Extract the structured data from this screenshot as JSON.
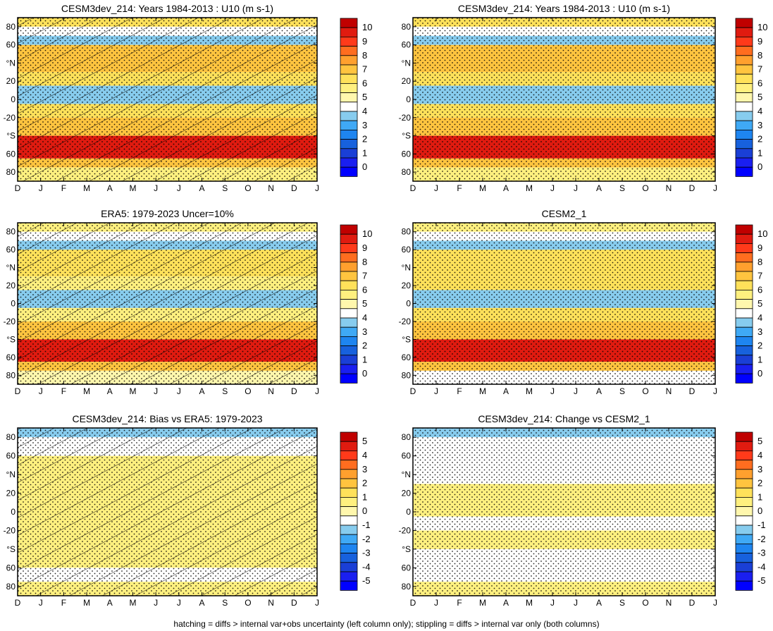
{
  "footnote": "hatching = diffs > internal var+obs uncertainty (left column only); stippling = diffs > internal var only (both columns)",
  "months": [
    "D",
    "J",
    "F",
    "M",
    "A",
    "M",
    "J",
    "J",
    "A",
    "S",
    "O",
    "N",
    "D",
    "J"
  ],
  "lat_ticks": [
    "80",
    "60",
    "°N",
    "20",
    "0",
    "-20",
    "°S",
    "60",
    "80"
  ],
  "colorbars": {
    "abs": {
      "labels": [
        "10",
        "9",
        "8",
        "7",
        "6",
        "5",
        "4",
        "3",
        "2",
        "1",
        "0"
      ],
      "colors": [
        "#c00000",
        "#e01b10",
        "#ff3a1a",
        "#ff6d1f",
        "#ffa02e",
        "#ffc43f",
        "#ffe15a",
        "#fff07f",
        "#fff7ad",
        "#ffffff",
        "#87ccee",
        "#3fa9f5",
        "#1e85f0",
        "#1761dd",
        "#1a3fd6",
        "#1a1ff0",
        "#0000ff"
      ]
    },
    "diff": {
      "labels": [
        "5",
        "4",
        "3",
        "2",
        "1",
        "0",
        "-1",
        "-2",
        "-3",
        "-4",
        "-5"
      ],
      "colors": [
        "#c00000",
        "#e01b10",
        "#ff3a1a",
        "#ff6d1f",
        "#ffa02e",
        "#ffc43f",
        "#ffe15a",
        "#fff07f",
        "#fff7ad",
        "#ffffff",
        "#87ccee",
        "#3fa9f5",
        "#1e85f0",
        "#1761dd",
        "#1a3fd6",
        "#1a1ff0",
        "#0000ff"
      ]
    }
  },
  "chart_data": [
    {
      "type": "heatmap",
      "title": "CESM3dev_214: Years 1984-2013 : U10 (m s-1)",
      "x": [
        "D",
        "J",
        "F",
        "M",
        "A",
        "M",
        "J",
        "J",
        "A",
        "S",
        "O",
        "N",
        "D",
        "J"
      ],
      "y_ticks": [
        "80",
        "60",
        "°N",
        "20",
        "0",
        "-20",
        "°S",
        "60",
        "80"
      ],
      "colorbar": "abs",
      "hatching": true,
      "stippling": true,
      "bands": [
        {
          "lat_range": [
            80,
            90
          ],
          "u10": 6.5
        },
        {
          "lat_range": [
            70,
            80
          ],
          "u10": 5.0
        },
        {
          "lat_range": [
            60,
            70
          ],
          "u10": 4.8
        },
        {
          "lat_range": [
            30,
            60
          ],
          "u10": 7.0
        },
        {
          "lat_range": [
            15,
            30
          ],
          "u10": 6.5
        },
        {
          "lat_range": [
            -5,
            15
          ],
          "u10": 4.7
        },
        {
          "lat_range": [
            -20,
            -5
          ],
          "u10": 6.5
        },
        {
          "lat_range": [
            -40,
            -20
          ],
          "u10": 7.5
        },
        {
          "lat_range": [
            -65,
            -40
          ],
          "u10": 9.6
        },
        {
          "lat_range": [
            -75,
            -65
          ],
          "u10": 7.5
        },
        {
          "lat_range": [
            -90,
            -75
          ],
          "u10": 6.0
        }
      ]
    },
    {
      "type": "heatmap",
      "title": "CESM3dev_214: Years 1984-2013 : U10 (m s-1)",
      "x": [
        "D",
        "J",
        "F",
        "M",
        "A",
        "M",
        "J",
        "J",
        "A",
        "S",
        "O",
        "N",
        "D",
        "J"
      ],
      "y_ticks": [
        "80",
        "60",
        "°N",
        "20",
        "0",
        "-20",
        "°S",
        "60",
        "80"
      ],
      "colorbar": "abs",
      "hatching": false,
      "stippling": true,
      "bands": [
        {
          "lat_range": [
            80,
            90
          ],
          "u10": 6.5
        },
        {
          "lat_range": [
            70,
            80
          ],
          "u10": 5.0
        },
        {
          "lat_range": [
            60,
            70
          ],
          "u10": 4.8
        },
        {
          "lat_range": [
            30,
            60
          ],
          "u10": 7.0
        },
        {
          "lat_range": [
            15,
            30
          ],
          "u10": 6.5
        },
        {
          "lat_range": [
            -5,
            15
          ],
          "u10": 4.7
        },
        {
          "lat_range": [
            -20,
            -5
          ],
          "u10": 6.5
        },
        {
          "lat_range": [
            -40,
            -20
          ],
          "u10": 7.5
        },
        {
          "lat_range": [
            -65,
            -40
          ],
          "u10": 9.6
        },
        {
          "lat_range": [
            -75,
            -65
          ],
          "u10": 7.5
        },
        {
          "lat_range": [
            -90,
            -75
          ],
          "u10": 6.0
        }
      ]
    },
    {
      "type": "heatmap",
      "title": "ERA5: 1979-2023 Uncer=10%",
      "x": [
        "D",
        "J",
        "F",
        "M",
        "A",
        "M",
        "J",
        "J",
        "A",
        "S",
        "O",
        "N",
        "D",
        "J"
      ],
      "y_ticks": [
        "80",
        "60",
        "°N",
        "20",
        "0",
        "-20",
        "°S",
        "60",
        "80"
      ],
      "colorbar": "abs",
      "hatching": true,
      "stippling": true,
      "bands": [
        {
          "lat_range": [
            80,
            90
          ],
          "u10": 6.0
        },
        {
          "lat_range": [
            70,
            80
          ],
          "u10": 5.0
        },
        {
          "lat_range": [
            60,
            70
          ],
          "u10": 4.6
        },
        {
          "lat_range": [
            30,
            60
          ],
          "u10": 6.5
        },
        {
          "lat_range": [
            15,
            30
          ],
          "u10": 6.0
        },
        {
          "lat_range": [
            -5,
            15
          ],
          "u10": 4.6
        },
        {
          "lat_range": [
            -20,
            -5
          ],
          "u10": 6.0
        },
        {
          "lat_range": [
            -40,
            -20
          ],
          "u10": 7.2
        },
        {
          "lat_range": [
            -65,
            -40
          ],
          "u10": 9.5
        },
        {
          "lat_range": [
            -75,
            -65
          ],
          "u10": 7.0
        },
        {
          "lat_range": [
            -90,
            -75
          ],
          "u10": 5.5
        }
      ]
    },
    {
      "type": "heatmap",
      "title": "CESM2_1",
      "x": [
        "D",
        "J",
        "F",
        "M",
        "A",
        "M",
        "J",
        "J",
        "A",
        "S",
        "O",
        "N",
        "D",
        "J"
      ],
      "y_ticks": [
        "80",
        "60",
        "°N",
        "20",
        "0",
        "-20",
        "°S",
        "60",
        "80"
      ],
      "colorbar": "abs",
      "hatching": false,
      "stippling": true,
      "bands": [
        {
          "lat_range": [
            80,
            90
          ],
          "u10": 6.0
        },
        {
          "lat_range": [
            70,
            80
          ],
          "u10": 5.0
        },
        {
          "lat_range": [
            60,
            70
          ],
          "u10": 4.6
        },
        {
          "lat_range": [
            30,
            60
          ],
          "u10": 6.8
        },
        {
          "lat_range": [
            15,
            30
          ],
          "u10": 6.5
        },
        {
          "lat_range": [
            -5,
            15
          ],
          "u10": 4.5
        },
        {
          "lat_range": [
            -20,
            -5
          ],
          "u10": 6.5
        },
        {
          "lat_range": [
            -40,
            -20
          ],
          "u10": 7.5
        },
        {
          "lat_range": [
            -65,
            -40
          ],
          "u10": 9.6
        },
        {
          "lat_range": [
            -75,
            -65
          ],
          "u10": 7.5
        },
        {
          "lat_range": [
            -90,
            -75
          ],
          "u10": 5.0
        }
      ]
    },
    {
      "type": "heatmap",
      "title": "CESM3dev_214: Bias vs ERA5: 1979-2023",
      "x": [
        "D",
        "J",
        "F",
        "M",
        "A",
        "M",
        "J",
        "J",
        "A",
        "S",
        "O",
        "N",
        "D",
        "J"
      ],
      "y_ticks": [
        "80",
        "60",
        "°N",
        "20",
        "0",
        "-20",
        "°S",
        "60",
        "80"
      ],
      "colorbar": "diff",
      "hatching": true,
      "stippling": true,
      "bands": [
        {
          "lat_range": [
            80,
            90
          ],
          "bias": -0.5
        },
        {
          "lat_range": [
            60,
            80
          ],
          "bias": 0.2
        },
        {
          "lat_range": [
            30,
            60
          ],
          "bias": 0.6
        },
        {
          "lat_range": [
            15,
            30
          ],
          "bias": 0.6
        },
        {
          "lat_range": [
            -5,
            15
          ],
          "bias": 0.6
        },
        {
          "lat_range": [
            -20,
            -5
          ],
          "bias": 0.5
        },
        {
          "lat_range": [
            -40,
            -20
          ],
          "bias": 0.6
        },
        {
          "lat_range": [
            -60,
            -40
          ],
          "bias": 0.5
        },
        {
          "lat_range": [
            -75,
            -60
          ],
          "bias": 0.2
        },
        {
          "lat_range": [
            -90,
            -75
          ],
          "bias": 0.6
        }
      ]
    },
    {
      "type": "heatmap",
      "title": "CESM3dev_214: Change vs CESM2_1",
      "x": [
        "D",
        "J",
        "F",
        "M",
        "A",
        "M",
        "J",
        "J",
        "A",
        "S",
        "O",
        "N",
        "D",
        "J"
      ],
      "y_ticks": [
        "80",
        "60",
        "°N",
        "20",
        "0",
        "-20",
        "°S",
        "60",
        "80"
      ],
      "colorbar": "diff",
      "hatching": false,
      "stippling": true,
      "bands": [
        {
          "lat_range": [
            80,
            90
          ],
          "change": -0.3
        },
        {
          "lat_range": [
            60,
            80
          ],
          "change": 0.1
        },
        {
          "lat_range": [
            30,
            60
          ],
          "change": 0.1
        },
        {
          "lat_range": [
            15,
            30
          ],
          "change": 0.5
        },
        {
          "lat_range": [
            -5,
            15
          ],
          "change": 0.5
        },
        {
          "lat_range": [
            -20,
            -5
          ],
          "change": 0.2
        },
        {
          "lat_range": [
            -40,
            -20
          ],
          "change": 0.5
        },
        {
          "lat_range": [
            -60,
            -40
          ],
          "change": 0.2
        },
        {
          "lat_range": [
            -75,
            -60
          ],
          "change": 0.1
        },
        {
          "lat_range": [
            -90,
            -75
          ],
          "change": 0.7
        }
      ]
    }
  ]
}
